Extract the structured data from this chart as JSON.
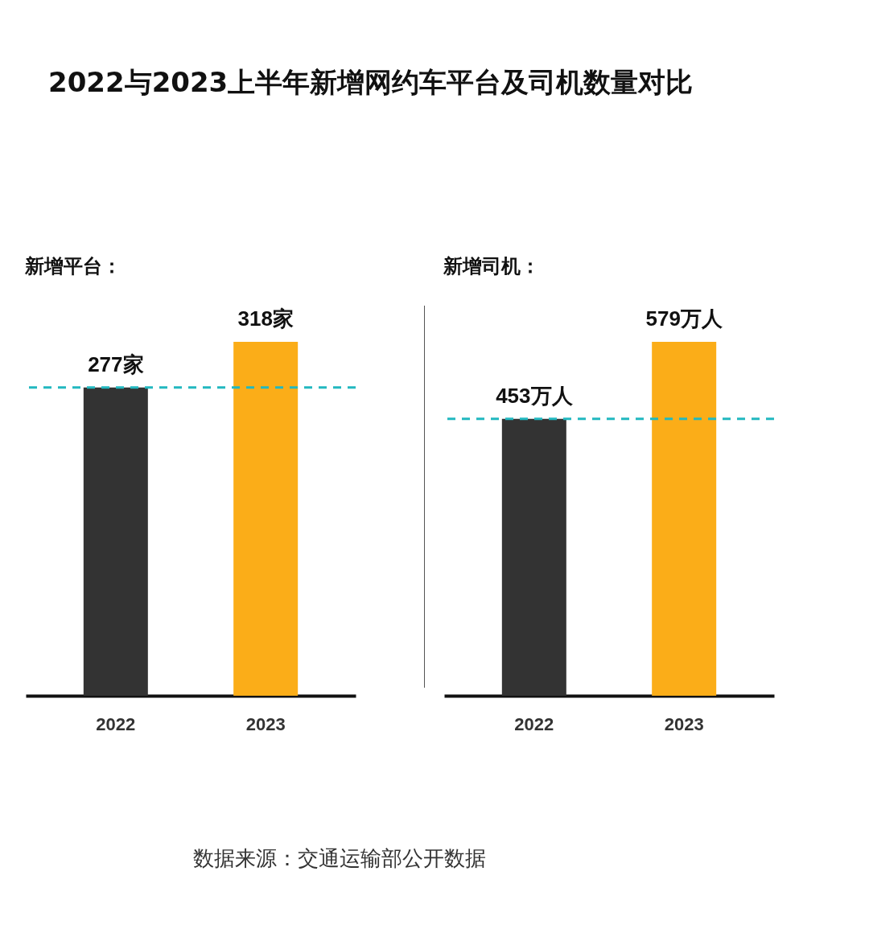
{
  "chart_data": [
    {
      "type": "bar",
      "title": "2022与2023上半年新增网约车平台及司机数量对比",
      "subtitle": "新增平台：",
      "categories": [
        "2022",
        "2023"
      ],
      "values": [
        277,
        318
      ],
      "colors": [
        "#333333",
        "#fbad18"
      ],
      "value_labels": [
        "277家",
        "318家"
      ],
      "tick_labels": "x",
      "ref_lines": [
        {
          "axis": "y",
          "value": 277,
          "color": "#22b8c0",
          "line_style": "dashed"
        }
      ]
    },
    {
      "type": "bar",
      "subtitle": "新增司机：",
      "categories": [
        "2022",
        "2023"
      ],
      "values": [
        453,
        579
      ],
      "colors": [
        "#333333",
        "#fbad18"
      ],
      "value_labels": [
        "453万人",
        "579万人"
      ],
      "tick_labels": "x",
      "ref_lines": [
        {
          "axis": "y",
          "value": 453,
          "color": "#22b8c0",
          "line_style": "dashed"
        }
      ],
      "annotations": [
        "数据来源：交通运输部公开数据"
      ]
    }
  ]
}
